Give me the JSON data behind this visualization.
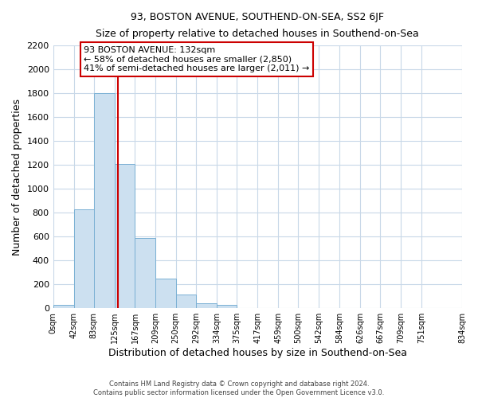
{
  "title": "93, BOSTON AVENUE, SOUTHEND-ON-SEA, SS2 6JF",
  "subtitle": "Size of property relative to detached houses in Southend-on-Sea",
  "xlabel": "Distribution of detached houses by size in Southend-on-Sea",
  "ylabel": "Number of detached properties",
  "bar_heights": [
    25,
    830,
    1800,
    1210,
    585,
    250,
    115,
    40,
    25,
    0,
    0,
    0,
    0,
    0,
    0,
    0,
    0,
    0,
    0
  ],
  "bin_edges": [
    0,
    42,
    83,
    125,
    167,
    209,
    250,
    292,
    334,
    375,
    417,
    459,
    500,
    542,
    584,
    626,
    667,
    709,
    751,
    834
  ],
  "tick_labels": [
    "0sqm",
    "42sqm",
    "83sqm",
    "125sqm",
    "167sqm",
    "209sqm",
    "250sqm",
    "292sqm",
    "334sqm",
    "375sqm",
    "417sqm",
    "459sqm",
    "500sqm",
    "542sqm",
    "584sqm",
    "626sqm",
    "667sqm",
    "709sqm",
    "751sqm",
    "834sqm"
  ],
  "bar_color": "#cce0f0",
  "bar_edge_color": "#7ab0d4",
  "vline_x": 132,
  "vline_color": "#cc0000",
  "annotation_line1": "93 BOSTON AVENUE: 132sqm",
  "annotation_line2": "← 58% of detached houses are smaller (2,850)",
  "annotation_line3": "41% of semi-detached houses are larger (2,011) →",
  "ylim": [
    0,
    2200
  ],
  "yticks": [
    0,
    200,
    400,
    600,
    800,
    1000,
    1200,
    1400,
    1600,
    1800,
    2000,
    2200
  ],
  "footer_text": "Contains HM Land Registry data © Crown copyright and database right 2024.\nContains public sector information licensed under the Open Government Licence v3.0.",
  "background_color": "#ffffff",
  "grid_color": "#c8d8e8"
}
